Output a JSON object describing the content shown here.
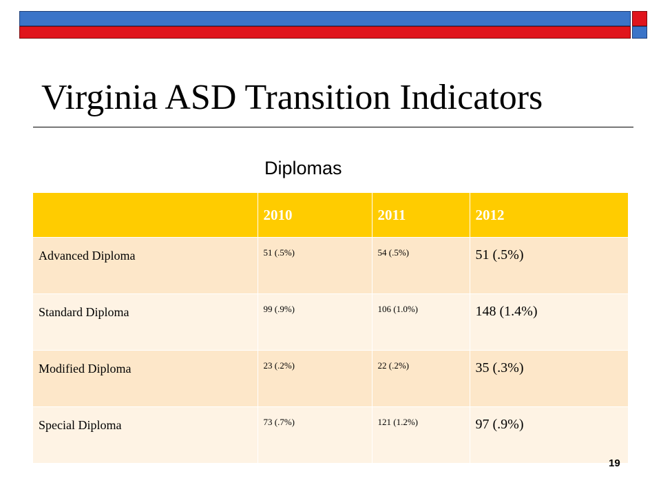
{
  "slide": {
    "title": "Virginia ASD Transition Indicators",
    "subtitle": "Diplomas",
    "page_number": "19"
  },
  "table": {
    "headers": [
      "",
      "2010",
      "2011",
      "2012"
    ],
    "rows": [
      {
        "label": "Advanced Diploma",
        "y2010": "51 (.5%)",
        "y2011": "54 (.5%)",
        "y2012": "51 (.5%)"
      },
      {
        "label": "Standard Diploma",
        "y2010": "99 (.9%)",
        "y2011": "106 (1.0%)",
        "y2012": "148 (1.4%)"
      },
      {
        "label": "Modified Diploma",
        "y2010": "23 (.2%)",
        "y2011": "22 (.2%)",
        "y2012": "35 (.3%)"
      },
      {
        "label": "Special Diploma",
        "y2010": "73 (.7%)",
        "y2011": "121 (1.2%)",
        "y2012": "97 (.9%)"
      }
    ]
  },
  "colors": {
    "header_bg": "#ffcc00",
    "row_odd_bg": "#fde7c9",
    "row_even_bg": "#fef3e4",
    "bar_blue": "#3b74c8",
    "bar_red": "#e0141c"
  }
}
